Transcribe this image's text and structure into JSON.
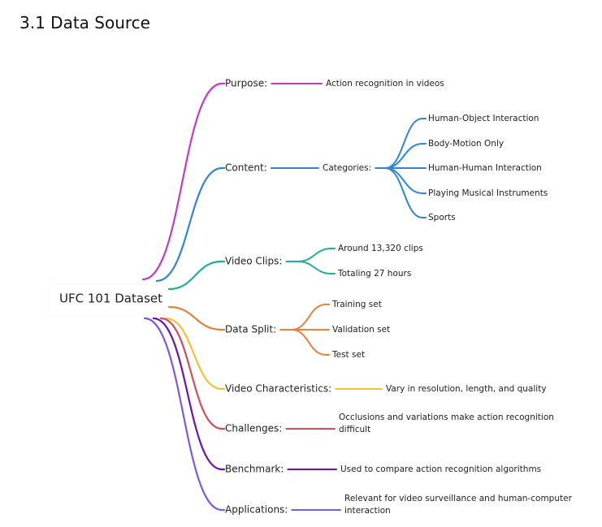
{
  "heading": "3.1 Data Source",
  "root": "UFC 101 Dataset",
  "branches": [
    {
      "label": "Purpose:",
      "color": "#c03cc8",
      "children": [
        {
          "label": "Action recognition in videos"
        }
      ]
    },
    {
      "label": "Content:",
      "color": "#2f86d8",
      "children": [
        {
          "label": "Categories:",
          "children": [
            {
              "label": "Human-Object Interaction"
            },
            {
              "label": "Body-Motion Only"
            },
            {
              "label": "Human-Human Interaction"
            },
            {
              "label": "Playing Musical Instruments"
            },
            {
              "label": "Sports"
            }
          ]
        }
      ]
    },
    {
      "label": "Video Clips:",
      "color": "#1fae9a",
      "children": [
        {
          "label": "Around 13,320 clips"
        },
        {
          "label": "Totaling 27 hours"
        }
      ]
    },
    {
      "label": "Data Split:",
      "color": "#e8813a",
      "children": [
        {
          "label": "Training set"
        },
        {
          "label": "Validation set"
        },
        {
          "label": "Test set"
        }
      ]
    },
    {
      "label": "Video Characteristics:",
      "color": "#f2c230",
      "children": [
        {
          "label": "Vary in resolution, length, and quality"
        }
      ]
    },
    {
      "label": "Challenges:",
      "color": "#d64a5a",
      "children": [
        {
          "label": "Occlusions and variations make action recognition difficult",
          "lines": [
            "Occlusions and variations make action recognition",
            "difficult"
          ]
        }
      ]
    },
    {
      "label": "Benchmark:",
      "color": "#6a12b8",
      "children": [
        {
          "label": "Used to compare action recognition algorithms"
        }
      ]
    },
    {
      "label": "Applications:",
      "color": "#7b5ae8",
      "children": [
        {
          "label": "Relevant for video surveillance and human-computer interaction",
          "lines": [
            "Relevant for video surveillance and human-computer",
            "interaction"
          ]
        }
      ]
    }
  ]
}
